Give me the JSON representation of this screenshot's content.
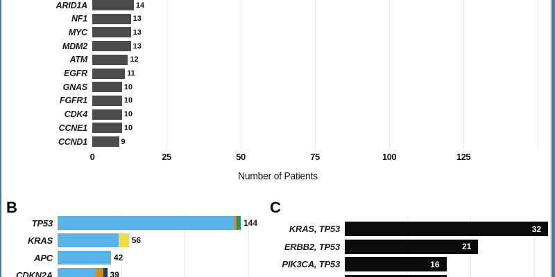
{
  "meta": {
    "description": "Cropped three-panel horizontal bar chart figure of gene alteration counts",
    "background": "#ffffff",
    "frame_color": "#4d7da0",
    "frame_inner_light": "#cfe2ee",
    "gridline_color": "#e9e9e9"
  },
  "chart_data": [
    {
      "panel": "top (panel letter cropped out of view)",
      "type": "bar",
      "orientation": "horizontal",
      "xlabel": "Number of Patients",
      "categories": [
        "ARID1A",
        "NF1",
        "MYC",
        "MDM2",
        "ATM",
        "EGFR",
        "GNAS",
        "FGFR1",
        "CDK4",
        "CCNE1",
        "CCND1"
      ],
      "values": [
        14,
        13,
        13,
        13,
        12,
        11,
        10,
        10,
        10,
        10,
        9
      ],
      "xticks": [
        0,
        25,
        50,
        75,
        100,
        125
      ],
      "gridlines": [
        25,
        50,
        75,
        100,
        125,
        150
      ],
      "xlim": [
        0,
        153
      ],
      "bar_color": "#4b4b4b",
      "grid": true,
      "note": "upper rows of this panel are cropped; ARID1A bar touches top edge"
    },
    {
      "panel": "B",
      "panel_label": "B",
      "type": "stacked_bar",
      "orientation": "horizontal",
      "categories": [
        "TP53",
        "KRAS",
        "APC",
        "CDKN2A"
      ],
      "totals": [
        144,
        56,
        42,
        39
      ],
      "bars": [
        {
          "gene": "TP53",
          "total": 144,
          "segments": [
            [
              "skyblue",
              139
            ],
            [
              "orange",
              2
            ],
            [
              "green",
              3
            ]
          ]
        },
        {
          "gene": "KRAS",
          "total": 56,
          "segments": [
            [
              "skyblue",
              48
            ],
            [
              "yellow",
              8
            ]
          ]
        },
        {
          "gene": "APC",
          "total": 42,
          "segments": [
            [
              "skyblue",
              42
            ]
          ]
        },
        {
          "gene": "CDKN2A",
          "total": 39,
          "segments": [
            [
              "skyblue",
              30
            ],
            [
              "orange",
              6
            ],
            [
              "navy",
              3
            ]
          ]
        }
      ],
      "colors": {
        "skyblue": "#56b4e9",
        "yellow": "#f0de41",
        "orange": "#d28d1e",
        "green": "#18996b",
        "navy": "#16426f"
      },
      "gridlines": [
        50,
        100,
        150
      ],
      "xlim": [
        0,
        162
      ],
      "note": "bottom row (CDKN2A) partially cropped by image bottom edge"
    },
    {
      "panel": "C",
      "panel_label": "C",
      "type": "bar",
      "orientation": "horizontal",
      "categories": [
        "KRAS, TP53",
        "ERBB2, TP53",
        "PIK3CA, TP53"
      ],
      "values": [
        32,
        21,
        16
      ],
      "bar_color": "#0b0b0b",
      "value_label_color": "#ffffff",
      "gridlines": [
        10,
        20,
        30
      ],
      "xlim": [
        0,
        32.5
      ],
      "cropped_fourth_bar": {
        "visible": true,
        "label_visible": false,
        "approx_value": 16
      },
      "note": "a fourth black bar is partially visible at the bottom edge; its label and value are cut off"
    }
  ]
}
